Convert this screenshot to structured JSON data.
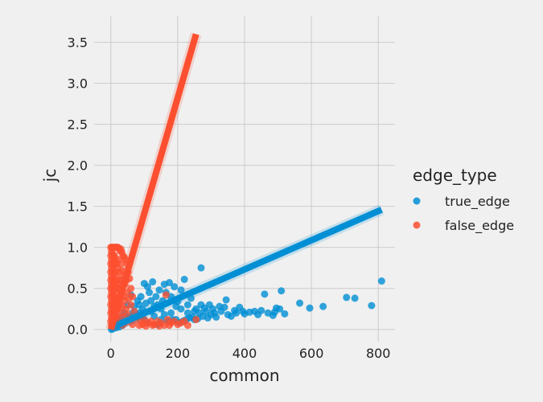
{
  "chart_data": {
    "type": "scatter",
    "title": "",
    "xlabel": "common",
    "ylabel": "jc",
    "xlim": [
      -50,
      850
    ],
    "ylim": [
      -0.15,
      3.82
    ],
    "x_ticks": [
      0,
      200,
      400,
      600,
      800
    ],
    "x_tick_labels": [
      "0",
      "200",
      "400",
      "600",
      "800"
    ],
    "y_ticks": [
      0.0,
      0.5,
      1.0,
      1.5,
      2.0,
      2.5,
      3.0,
      3.5
    ],
    "y_tick_labels": [
      "0.0",
      "0.5",
      "1.0",
      "1.5",
      "2.0",
      "2.5",
      "3.0",
      "3.5"
    ],
    "grid": true,
    "legend": {
      "title": "edge_type",
      "position": "right"
    },
    "series": [
      {
        "name": "true_edge",
        "color": "#008fd5",
        "regression": {
          "x": [
            0,
            810
          ],
          "y": [
            0.02,
            1.46
          ]
        },
        "points": [
          [
            810,
            0.59
          ],
          [
            780,
            0.29
          ],
          [
            730,
            0.38
          ],
          [
            705,
            0.39
          ],
          [
            635,
            0.28
          ],
          [
            595,
            0.26
          ],
          [
            565,
            0.32
          ],
          [
            520,
            0.19
          ],
          [
            510,
            0.47
          ],
          [
            505,
            0.25
          ],
          [
            495,
            0.26
          ],
          [
            490,
            0.21
          ],
          [
            485,
            0.17
          ],
          [
            470,
            0.2
          ],
          [
            460,
            0.43
          ],
          [
            450,
            0.23
          ],
          [
            440,
            0.18
          ],
          [
            430,
            0.22
          ],
          [
            415,
            0.21
          ],
          [
            400,
            0.19
          ],
          [
            395,
            0.22
          ],
          [
            385,
            0.27
          ],
          [
            375,
            0.2
          ],
          [
            370,
            0.23
          ],
          [
            360,
            0.16
          ],
          [
            350,
            0.18
          ],
          [
            345,
            0.36
          ],
          [
            340,
            0.27
          ],
          [
            330,
            0.22
          ],
          [
            325,
            0.28
          ],
          [
            315,
            0.15
          ],
          [
            310,
            0.2
          ],
          [
            305,
            0.25
          ],
          [
            300,
            0.18
          ],
          [
            295,
            0.3
          ],
          [
            290,
            0.14
          ],
          [
            285,
            0.22
          ],
          [
            280,
            0.26
          ],
          [
            275,
            0.16
          ],
          [
            270,
            0.75
          ],
          [
            265,
            0.2
          ],
          [
            260,
            0.13
          ],
          [
            255,
            0.25
          ],
          [
            250,
            0.12
          ],
          [
            245,
            0.15
          ],
          [
            240,
            0.38
          ],
          [
            235,
            0.14
          ],
          [
            230,
            0.3
          ],
          [
            225,
            0.12
          ],
          [
            220,
            0.61
          ],
          [
            215,
            0.1
          ],
          [
            210,
            0.48
          ],
          [
            205,
            0.08
          ],
          [
            200,
            0.34
          ],
          [
            195,
            0.12
          ],
          [
            190,
            0.52
          ],
          [
            185,
            0.12
          ],
          [
            180,
            0.4
          ],
          [
            175,
            0.57
          ],
          [
            170,
            0.1
          ],
          [
            165,
            0.45
          ],
          [
            160,
            0.55
          ],
          [
            155,
            0.35
          ],
          [
            150,
            0.25
          ],
          [
            145,
            0.48
          ],
          [
            140,
            0.3
          ],
          [
            135,
            0.4
          ],
          [
            130,
            0.28
          ],
          [
            125,
            0.58
          ],
          [
            120,
            0.35
          ],
          [
            115,
            0.45
          ],
          [
            110,
            0.52
          ],
          [
            105,
            0.32
          ],
          [
            100,
            0.56
          ],
          [
            95,
            0.25
          ],
          [
            90,
            0.4
          ],
          [
            85,
            0.2
          ],
          [
            80,
            0.35
          ],
          [
            75,
            0.15
          ],
          [
            70,
            0.28
          ],
          [
            65,
            0.2
          ],
          [
            60,
            0.42
          ],
          [
            55,
            0.15
          ],
          [
            50,
            0.3
          ],
          [
            45,
            0.1
          ],
          [
            40,
            0.2
          ],
          [
            35,
            0.05
          ],
          [
            30,
            0.15
          ],
          [
            25,
            0.03
          ],
          [
            20,
            0.1
          ],
          [
            15,
            0.02
          ],
          [
            10,
            0.05
          ],
          [
            5,
            0.01
          ],
          [
            2,
            0.0
          ],
          [
            130,
            0.16
          ],
          [
            150,
            0.12
          ],
          [
            180,
            0.2
          ],
          [
            120,
            0.22
          ],
          [
            160,
            0.18
          ],
          [
            195,
            0.28
          ],
          [
            210,
            0.25
          ],
          [
            90,
            0.16
          ],
          [
            110,
            0.08
          ],
          [
            140,
            0.06
          ],
          [
            175,
            0.1
          ],
          [
            230,
            0.2
          ],
          [
            250,
            0.22
          ],
          [
            270,
            0.3
          ],
          [
            100,
            0.12
          ],
          [
            85,
            0.3
          ]
        ]
      },
      {
        "name": "false_edge",
        "color": "#fc4f30",
        "regression": {
          "x": [
            0,
            255
          ],
          "y": [
            0.0,
            3.6
          ]
        },
        "points": [
          [
            0,
            1.0
          ],
          [
            3,
            1.0
          ],
          [
            6,
            1.0
          ],
          [
            9,
            1.0
          ],
          [
            12,
            1.0
          ],
          [
            15,
            1.0
          ],
          [
            18,
            1.0
          ],
          [
            21,
            1.0
          ],
          [
            24,
            0.99
          ],
          [
            27,
            0.96
          ],
          [
            30,
            0.98
          ],
          [
            33,
            0.94
          ],
          [
            36,
            0.9
          ],
          [
            40,
            0.88
          ],
          [
            44,
            0.85
          ],
          [
            48,
            0.8
          ],
          [
            52,
            0.7
          ],
          [
            56,
            0.62
          ],
          [
            60,
            0.5
          ],
          [
            65,
            0.4
          ],
          [
            0,
            0.9
          ],
          [
            0,
            0.8
          ],
          [
            0,
            0.7
          ],
          [
            0,
            0.6
          ],
          [
            0,
            0.5
          ],
          [
            0,
            0.4
          ],
          [
            0,
            0.3
          ],
          [
            0,
            0.2
          ],
          [
            0,
            0.1
          ],
          [
            2,
            0.95
          ],
          [
            2,
            0.85
          ],
          [
            2,
            0.75
          ],
          [
            2,
            0.65
          ],
          [
            2,
            0.55
          ],
          [
            2,
            0.45
          ],
          [
            2,
            0.35
          ],
          [
            2,
            0.25
          ],
          [
            2,
            0.15
          ],
          [
            2,
            0.05
          ],
          [
            5,
            0.92
          ],
          [
            5,
            0.82
          ],
          [
            5,
            0.72
          ],
          [
            5,
            0.62
          ],
          [
            5,
            0.52
          ],
          [
            5,
            0.42
          ],
          [
            5,
            0.32
          ],
          [
            5,
            0.22
          ],
          [
            5,
            0.12
          ],
          [
            8,
            0.88
          ],
          [
            8,
            0.78
          ],
          [
            8,
            0.68
          ],
          [
            8,
            0.58
          ],
          [
            8,
            0.48
          ],
          [
            8,
            0.38
          ],
          [
            8,
            0.28
          ],
          [
            8,
            0.18
          ],
          [
            8,
            0.08
          ],
          [
            11,
            0.9
          ],
          [
            11,
            0.8
          ],
          [
            11,
            0.6
          ],
          [
            11,
            0.4
          ],
          [
            11,
            0.2
          ],
          [
            14,
            0.85
          ],
          [
            14,
            0.7
          ],
          [
            14,
            0.55
          ],
          [
            14,
            0.3
          ],
          [
            14,
            0.1
          ],
          [
            17,
            0.8
          ],
          [
            17,
            0.65
          ],
          [
            17,
            0.5
          ],
          [
            17,
            0.35
          ],
          [
            17,
            0.15
          ],
          [
            20,
            0.75
          ],
          [
            20,
            0.6
          ],
          [
            20,
            0.45
          ],
          [
            20,
            0.25
          ],
          [
            23,
            0.85
          ],
          [
            23,
            0.55
          ],
          [
            23,
            0.35
          ],
          [
            23,
            0.12
          ],
          [
            26,
            0.7
          ],
          [
            26,
            0.5
          ],
          [
            26,
            0.3
          ],
          [
            30,
            0.8
          ],
          [
            30,
            0.6
          ],
          [
            30,
            0.42
          ],
          [
            30,
            0.2
          ],
          [
            34,
            0.72
          ],
          [
            34,
            0.5
          ],
          [
            34,
            0.28
          ],
          [
            38,
            0.65
          ],
          [
            38,
            0.4
          ],
          [
            38,
            0.15
          ],
          [
            42,
            0.55
          ],
          [
            42,
            0.35
          ],
          [
            46,
            0.6
          ],
          [
            46,
            0.25
          ],
          [
            50,
            0.45
          ],
          [
            50,
            0.18
          ],
          [
            55,
            0.38
          ],
          [
            55,
            0.12
          ],
          [
            60,
            0.3
          ],
          [
            60,
            0.1
          ],
          [
            70,
            0.22
          ],
          [
            75,
            0.12
          ],
          [
            80,
            0.15
          ],
          [
            90,
            0.1
          ],
          [
            100,
            0.12
          ],
          [
            110,
            0.08
          ],
          [
            120,
            0.1
          ],
          [
            130,
            0.06
          ],
          [
            140,
            0.1
          ],
          [
            150,
            0.08
          ],
          [
            160,
            0.05
          ],
          [
            165,
            0.42
          ],
          [
            170,
            0.12
          ],
          [
            180,
            0.08
          ],
          [
            190,
            0.1
          ],
          [
            200,
            0.06
          ],
          [
            210,
            0.08
          ],
          [
            220,
            0.1
          ],
          [
            230,
            0.05
          ],
          [
            255,
            0.12
          ],
          [
            85,
            0.05
          ],
          [
            95,
            0.06
          ],
          [
            105,
            0.04
          ],
          [
            125,
            0.05
          ],
          [
            145,
            0.04
          ],
          [
            175,
            0.05
          ],
          [
            45,
            0.08
          ],
          [
            65,
            0.06
          ],
          [
            35,
            0.05
          ]
        ]
      }
    ]
  }
}
